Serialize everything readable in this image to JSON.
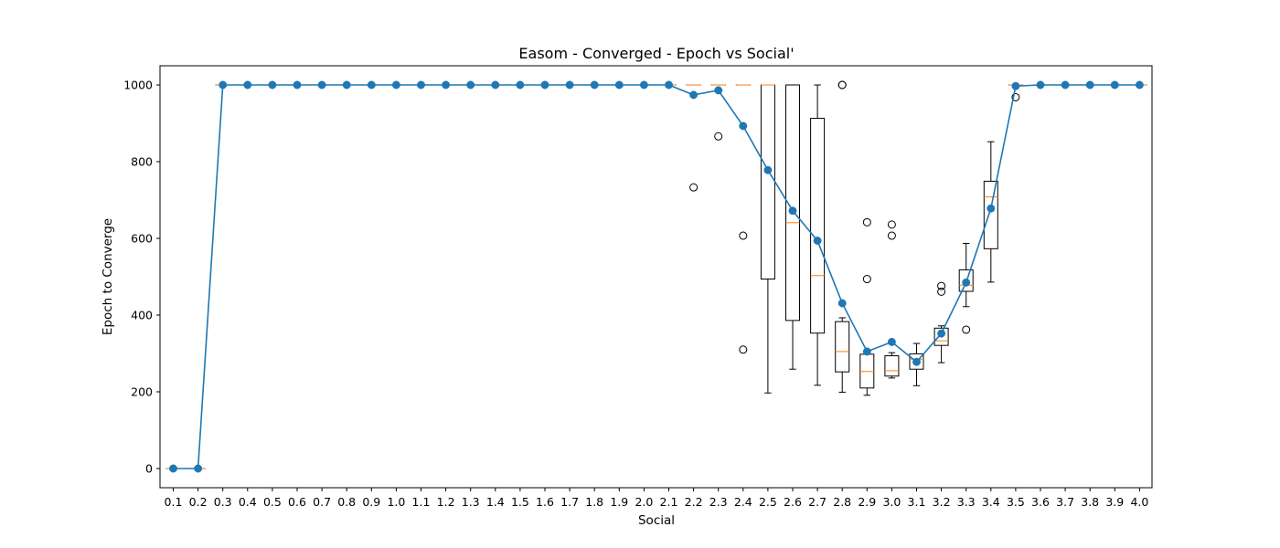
{
  "chart_data": {
    "type": "box+line",
    "title": "Easom - Converged - Epoch vs Social'",
    "xlabel": "Social",
    "ylabel": "Epoch to Converge",
    "ylim": [
      -50,
      1050
    ],
    "yticks": [
      0,
      200,
      400,
      600,
      800,
      1000
    ],
    "categories": [
      "0.1",
      "0.2",
      "0.3",
      "0.4",
      "0.5",
      "0.6",
      "0.7",
      "0.8",
      "0.9",
      "1.0",
      "1.1",
      "1.2",
      "1.3",
      "1.4",
      "1.5",
      "1.6",
      "1.7",
      "1.8",
      "1.9",
      "2.0",
      "2.1",
      "2.2",
      "2.3",
      "2.4",
      "2.5",
      "2.6",
      "2.7",
      "2.8",
      "2.9",
      "3.0",
      "3.1",
      "3.2",
      "3.3",
      "3.4",
      "3.5",
      "3.6",
      "3.7",
      "3.8",
      "3.9",
      "4.0"
    ],
    "grid": false,
    "colors": {
      "mean_line": "#1f77b4",
      "median": "#ff7f0e",
      "box": "#000000"
    },
    "series": [
      {
        "type": "line",
        "values": [
          0,
          0,
          1000,
          1000,
          1000,
          1000,
          1000,
          1000,
          1000,
          1000,
          1000,
          1000,
          1000,
          1000,
          1000,
          1000,
          1000,
          1000,
          1000,
          1000,
          1000,
          974,
          986,
          893,
          778,
          672,
          594,
          431,
          305,
          330,
          278,
          352,
          485,
          678,
          997,
          1000,
          1000,
          1000,
          1000,
          1000
        ]
      }
    ],
    "boxes": [
      {
        "cat": "0.1",
        "q1": 0,
        "med": 0,
        "q3": 0,
        "wlo": 0,
        "whi": 0,
        "fliers": []
      },
      {
        "cat": "0.2",
        "q1": 0,
        "med": 0,
        "q3": 0,
        "wlo": 0,
        "whi": 0,
        "fliers": []
      },
      {
        "cat": "0.3",
        "q1": 1000,
        "med": 1000,
        "q3": 1000,
        "wlo": 1000,
        "whi": 1000,
        "fliers": []
      },
      {
        "cat": "0.4",
        "q1": 1000,
        "med": 1000,
        "q3": 1000,
        "wlo": 1000,
        "whi": 1000,
        "fliers": []
      },
      {
        "cat": "0.5",
        "q1": 1000,
        "med": 1000,
        "q3": 1000,
        "wlo": 1000,
        "whi": 1000,
        "fliers": []
      },
      {
        "cat": "0.6",
        "q1": 1000,
        "med": 1000,
        "q3": 1000,
        "wlo": 1000,
        "whi": 1000,
        "fliers": []
      },
      {
        "cat": "0.7",
        "q1": 1000,
        "med": 1000,
        "q3": 1000,
        "wlo": 1000,
        "whi": 1000,
        "fliers": []
      },
      {
        "cat": "0.8",
        "q1": 1000,
        "med": 1000,
        "q3": 1000,
        "wlo": 1000,
        "whi": 1000,
        "fliers": []
      },
      {
        "cat": "0.9",
        "q1": 1000,
        "med": 1000,
        "q3": 1000,
        "wlo": 1000,
        "whi": 1000,
        "fliers": []
      },
      {
        "cat": "1.0",
        "q1": 1000,
        "med": 1000,
        "q3": 1000,
        "wlo": 1000,
        "whi": 1000,
        "fliers": []
      },
      {
        "cat": "1.1",
        "q1": 1000,
        "med": 1000,
        "q3": 1000,
        "wlo": 1000,
        "whi": 1000,
        "fliers": []
      },
      {
        "cat": "1.2",
        "q1": 1000,
        "med": 1000,
        "q3": 1000,
        "wlo": 1000,
        "whi": 1000,
        "fliers": []
      },
      {
        "cat": "1.3",
        "q1": 1000,
        "med": 1000,
        "q3": 1000,
        "wlo": 1000,
        "whi": 1000,
        "fliers": []
      },
      {
        "cat": "1.4",
        "q1": 1000,
        "med": 1000,
        "q3": 1000,
        "wlo": 1000,
        "whi": 1000,
        "fliers": []
      },
      {
        "cat": "1.5",
        "q1": 1000,
        "med": 1000,
        "q3": 1000,
        "wlo": 1000,
        "whi": 1000,
        "fliers": []
      },
      {
        "cat": "1.6",
        "q1": 1000,
        "med": 1000,
        "q3": 1000,
        "wlo": 1000,
        "whi": 1000,
        "fliers": []
      },
      {
        "cat": "1.7",
        "q1": 1000,
        "med": 1000,
        "q3": 1000,
        "wlo": 1000,
        "whi": 1000,
        "fliers": []
      },
      {
        "cat": "1.8",
        "q1": 1000,
        "med": 1000,
        "q3": 1000,
        "wlo": 1000,
        "whi": 1000,
        "fliers": []
      },
      {
        "cat": "1.9",
        "q1": 1000,
        "med": 1000,
        "q3": 1000,
        "wlo": 1000,
        "whi": 1000,
        "fliers": []
      },
      {
        "cat": "2.0",
        "q1": 1000,
        "med": 1000,
        "q3": 1000,
        "wlo": 1000,
        "whi": 1000,
        "fliers": []
      },
      {
        "cat": "2.1",
        "q1": 1000,
        "med": 1000,
        "q3": 1000,
        "wlo": 1000,
        "whi": 1000,
        "fliers": []
      },
      {
        "cat": "2.2",
        "q1": 1000,
        "med": 1000,
        "q3": 1000,
        "wlo": 1000,
        "whi": 1000,
        "fliers": [
          733
        ]
      },
      {
        "cat": "2.3",
        "q1": 1000,
        "med": 1000,
        "q3": 1000,
        "wlo": 1000,
        "whi": 1000,
        "fliers": [
          866
        ]
      },
      {
        "cat": "2.4",
        "q1": 1000,
        "med": 1000,
        "q3": 1000,
        "wlo": 1000,
        "whi": 1000,
        "fliers": [
          607,
          310
        ]
      },
      {
        "cat": "2.5",
        "q1": 494,
        "med": 1000,
        "q3": 1000,
        "wlo": 197,
        "whi": 1000,
        "fliers": []
      },
      {
        "cat": "2.6",
        "q1": 386,
        "med": 641,
        "q3": 1000,
        "wlo": 259,
        "whi": 1000,
        "fliers": []
      },
      {
        "cat": "2.7",
        "q1": 353,
        "med": 503,
        "q3": 913,
        "wlo": 217,
        "whi": 1000,
        "fliers": []
      },
      {
        "cat": "2.8",
        "q1": 252,
        "med": 305,
        "q3": 383,
        "wlo": 199,
        "whi": 393,
        "fliers": [
          1000,
          1000
        ]
      },
      {
        "cat": "2.9",
        "q1": 210,
        "med": 253,
        "q3": 298,
        "wlo": 191,
        "whi": 303,
        "fliers": [
          642,
          494
        ]
      },
      {
        "cat": "3.0",
        "q1": 241,
        "med": 255,
        "q3": 294,
        "wlo": 236,
        "whi": 302,
        "fliers": [
          636,
          607
        ]
      },
      {
        "cat": "3.1",
        "q1": 259,
        "med": 285,
        "q3": 299,
        "wlo": 216,
        "whi": 326,
        "fliers": []
      },
      {
        "cat": "3.2",
        "q1": 321,
        "med": 333,
        "q3": 366,
        "wlo": 276,
        "whi": 372,
        "fliers": [
          476,
          461
        ]
      },
      {
        "cat": "3.3",
        "q1": 462,
        "med": 478,
        "q3": 518,
        "wlo": 422,
        "whi": 587,
        "fliers": [
          362
        ]
      },
      {
        "cat": "3.4",
        "q1": 573,
        "med": 708,
        "q3": 749,
        "wlo": 486,
        "whi": 852,
        "fliers": []
      },
      {
        "cat": "3.5",
        "q1": 1000,
        "med": 1000,
        "q3": 1000,
        "wlo": 1000,
        "whi": 1000,
        "fliers": [
          968
        ]
      },
      {
        "cat": "3.6",
        "q1": 1000,
        "med": 1000,
        "q3": 1000,
        "wlo": 1000,
        "whi": 1000,
        "fliers": []
      },
      {
        "cat": "3.7",
        "q1": 1000,
        "med": 1000,
        "q3": 1000,
        "wlo": 1000,
        "whi": 1000,
        "fliers": []
      },
      {
        "cat": "3.8",
        "q1": 1000,
        "med": 1000,
        "q3": 1000,
        "wlo": 1000,
        "whi": 1000,
        "fliers": []
      },
      {
        "cat": "3.9",
        "q1": 1000,
        "med": 1000,
        "q3": 1000,
        "wlo": 1000,
        "whi": 1000,
        "fliers": []
      },
      {
        "cat": "4.0",
        "q1": 1000,
        "med": 1000,
        "q3": 1000,
        "wlo": 1000,
        "whi": 1000,
        "fliers": []
      }
    ]
  }
}
